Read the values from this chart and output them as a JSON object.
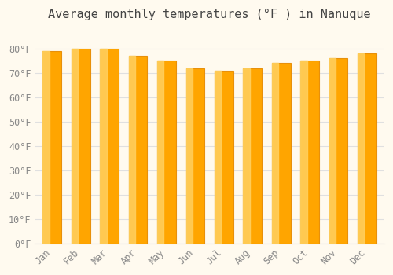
{
  "title": "Average monthly temperatures (°F ) in Nanuque",
  "months": [
    "Jan",
    "Feb",
    "Mar",
    "Apr",
    "May",
    "Jun",
    "Jul",
    "Aug",
    "Sep",
    "Oct",
    "Nov",
    "Dec"
  ],
  "values": [
    79,
    80,
    80,
    77,
    75,
    72,
    71,
    72,
    74,
    75,
    76,
    78
  ],
  "bar_color_main": "#FFA500",
  "bar_color_light": "#FFD060",
  "bar_edge_color": "#E8900A",
  "background_color": "#FFFAEF",
  "grid_color": "#E0E0E0",
  "tick_label_color": "#888888",
  "title_color": "#444444",
  "ylim": [
    0,
    88
  ],
  "yticks": [
    0,
    10,
    20,
    30,
    40,
    50,
    60,
    70,
    80
  ],
  "ytick_labels": [
    "0°F",
    "10°F",
    "20°F",
    "30°F",
    "40°F",
    "50°F",
    "60°F",
    "70°F",
    "80°F"
  ],
  "title_fontsize": 11,
  "tick_fontsize": 8.5
}
